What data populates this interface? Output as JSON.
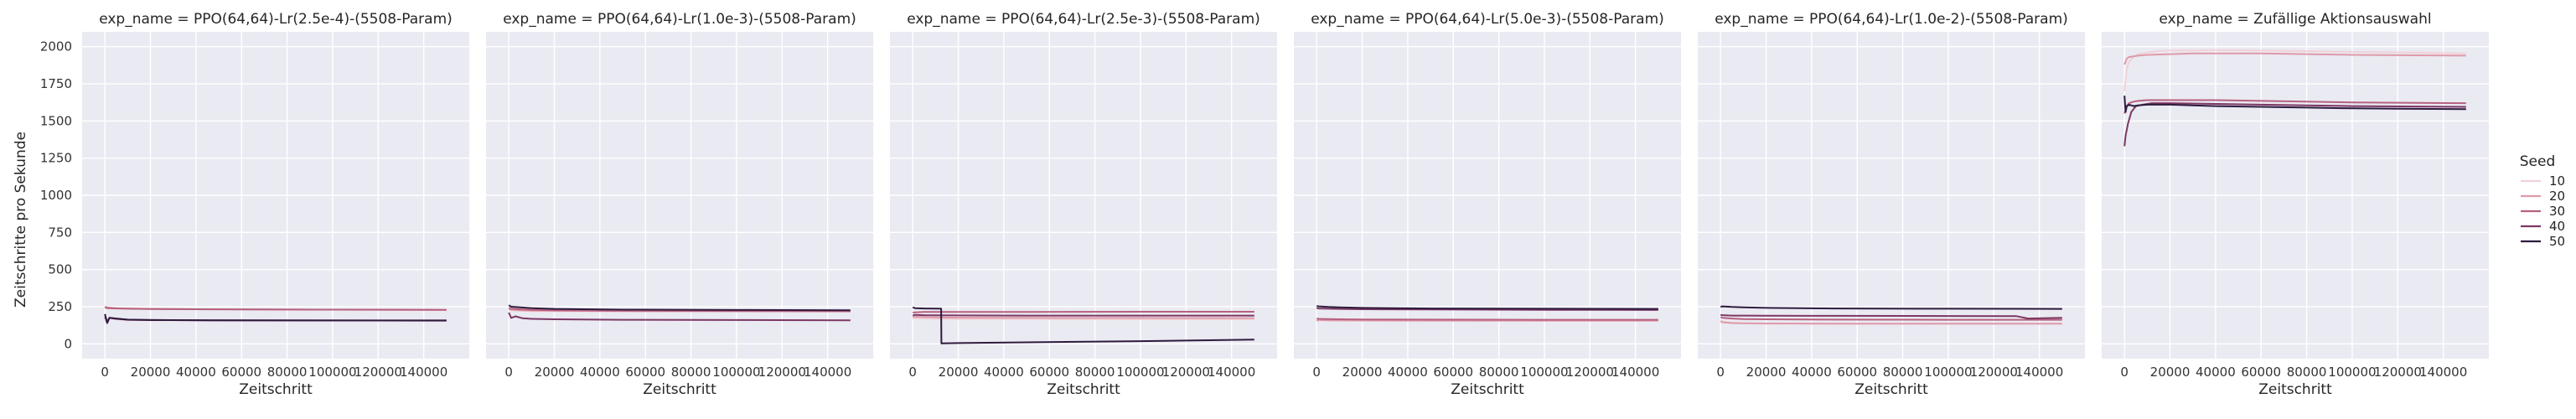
{
  "chart_data": {
    "type": "line",
    "ylabel": "Zeitschritte pro Sekunde",
    "xlabel": "Zeitschritt",
    "xlim": [
      -10000,
      160000
    ],
    "ylim": [
      -100,
      2100
    ],
    "xticks": [
      0,
      20000,
      40000,
      60000,
      80000,
      100000,
      120000,
      140000
    ],
    "xtick_labels": [
      "0",
      "20000",
      "40000",
      "60000",
      "80000",
      "100000",
      "120000",
      "140000"
    ],
    "yticks": [
      0,
      250,
      500,
      750,
      1000,
      1250,
      1500,
      1750,
      2000
    ],
    "ytick_labels": [
      "0",
      "250",
      "500",
      "750",
      "1000",
      "1250",
      "1500",
      "1750",
      "2000"
    ],
    "grid": true,
    "legend": {
      "title": "Seed",
      "placement": "right",
      "entries": [
        {
          "label": "10",
          "color": "#f1d2d8"
        },
        {
          "label": "20",
          "color": "#de9aaa"
        },
        {
          "label": "30",
          "color": "#b7607f"
        },
        {
          "label": "40",
          "color": "#7c3763"
        },
        {
          "label": "50",
          "color": "#2d1b3e"
        }
      ]
    },
    "panels": [
      {
        "title": "exp_name = PPO(64,64)-Lr(2.5e-4)-(5508-Param)",
        "series": [
          {
            "seed": "10",
            "x": [
              0,
              1000,
              2000,
              5000,
              10000,
              20000,
              50000,
              100000,
              150000
            ],
            "y": [
              160,
              140,
              170,
              165,
              160,
              158,
              157,
              157,
              157
            ]
          },
          {
            "seed": "20",
            "x": [
              0,
              1000,
              5000,
              10000,
              20000,
              50000,
              100000,
              150000
            ],
            "y": [
              250,
              245,
              240,
              238,
              235,
              232,
              230,
              228
            ]
          },
          {
            "seed": "30",
            "x": [
              0,
              1000,
              5000,
              10000,
              20000,
              50000,
              100000,
              150000
            ],
            "y": [
              245,
              240,
              238,
              236,
              234,
              232,
              230,
              229
            ]
          },
          {
            "seed": "40",
            "x": [
              0,
              1000,
              2000,
              5000,
              10000,
              20000,
              50000,
              100000,
              150000
            ],
            "y": [
              180,
              150,
              175,
              168,
              162,
              160,
              158,
              157,
              156
            ]
          },
          {
            "seed": "50",
            "x": [
              0,
              1000,
              2000,
              5000,
              10000,
              20000,
              50000,
              100000,
              150000
            ],
            "y": [
              200,
              140,
              175,
              170,
              163,
              160,
              158,
              157,
              157
            ]
          }
        ]
      },
      {
        "title": "exp_name = PPO(64,64)-Lr(1.0e-3)-(5508-Param)",
        "series": [
          {
            "seed": "10",
            "x": [
              0,
              1000,
              5000,
              10000,
              20000,
              50000,
              100000,
              150000
            ],
            "y": [
              230,
              225,
              222,
              220,
              219,
              218,
              218,
              217
            ]
          },
          {
            "seed": "20",
            "x": [
              0,
              1000,
              5000,
              10000,
              20000,
              50000,
              100000,
              150000
            ],
            "y": [
              235,
              230,
              226,
              224,
              222,
              220,
              219,
              218
            ]
          },
          {
            "seed": "30",
            "x": [
              0,
              1000,
              5000,
              10000,
              20000,
              50000,
              100000,
              150000
            ],
            "y": [
              240,
              236,
              232,
              229,
              226,
              223,
              221,
              220
            ]
          },
          {
            "seed": "40",
            "x": [
              0,
              1000,
              3000,
              6000,
              10000,
              20000,
              50000,
              100000,
              150000
            ],
            "y": [
              210,
              175,
              185,
              172,
              168,
              165,
              162,
              160,
              158
            ]
          },
          {
            "seed": "50",
            "x": [
              0,
              1000,
              5000,
              10000,
              20000,
              50000,
              100000,
              150000
            ],
            "y": [
              260,
              250,
              245,
              240,
              235,
              230,
              228,
              226
            ]
          }
        ]
      },
      {
        "title": "exp_name = PPO(64,64)-Lr(2.5e-3)-(5508-Param)",
        "series": [
          {
            "seed": "10",
            "x": [
              0,
              1000,
              5000,
              10000,
              20000,
              50000,
              100000,
              150000
            ],
            "y": [
              170,
              172,
              170,
              168,
              167,
              166,
              165,
              165
            ]
          },
          {
            "seed": "20",
            "x": [
              0,
              1000,
              5000,
              10000,
              20000,
              50000,
              100000,
              150000
            ],
            "y": [
              180,
              182,
              180,
              178,
              176,
              175,
              174,
              173
            ]
          },
          {
            "seed": "30",
            "x": [
              0,
              1000,
              5000,
              10000,
              20000,
              50000,
              100000,
              150000
            ],
            "y": [
              210,
              212,
              214,
              214,
              215,
              215,
              216,
              216
            ]
          },
          {
            "seed": "40",
            "x": [
              0,
              1000,
              5000,
              10000,
              20000,
              50000,
              100000,
              150000
            ],
            "y": [
              190,
              195,
              193,
              192,
              191,
              190,
              190,
              190
            ]
          },
          {
            "seed": "50",
            "x": [
              0,
              1000,
              5000,
              10000,
              12500,
              12600,
              20000,
              50000,
              100000,
              150000
            ],
            "y": [
              245,
              240,
              238,
              237,
              236,
              3,
              5,
              10,
              18,
              28
            ]
          }
        ]
      },
      {
        "title": "exp_name = PPO(64,64)-Lr(5.0e-3)-(5508-Param)",
        "series": [
          {
            "seed": "10",
            "x": [
              0,
              1000,
              5000,
              10000,
              20000,
              50000,
              100000,
              150000
            ],
            "y": [
              160,
              158,
              157,
              156,
              156,
              156,
              156,
              156
            ]
          },
          {
            "seed": "20",
            "x": [
              0,
              1000,
              5000,
              10000,
              20000,
              50000,
              100000,
              150000
            ],
            "y": [
              155,
              160,
              158,
              157,
              157,
              156,
              156,
              156
            ]
          },
          {
            "seed": "30",
            "x": [
              0,
              1000,
              5000,
              10000,
              20000,
              50000,
              100000,
              150000
            ],
            "y": [
              170,
              168,
              166,
              165,
              164,
              163,
              162,
              162
            ]
          },
          {
            "seed": "40",
            "x": [
              0,
              1000,
              5000,
              10000,
              20000,
              50000,
              100000,
              150000
            ],
            "y": [
              240,
              238,
              236,
              235,
              233,
              231,
              229,
              228
            ]
          },
          {
            "seed": "50",
            "x": [
              0,
              1000,
              5000,
              10000,
              20000,
              50000,
              100000,
              150000
            ],
            "y": [
              255,
              252,
              248,
              245,
              242,
              238,
              236,
              235
            ]
          }
        ]
      },
      {
        "title": "exp_name = PPO(64,64)-Lr(1.0e-2)-(5508-Param)",
        "series": [
          {
            "seed": "10",
            "x": [
              0,
              1000,
              5000,
              10000,
              20000,
              50000,
              100000,
              150000
            ],
            "y": [
              160,
              150,
              142,
              138,
              136,
              135,
              134,
              134
            ]
          },
          {
            "seed": "20",
            "x": [
              0,
              1000,
              5000,
              10000,
              20000,
              50000,
              100000,
              150000
            ],
            "y": [
              150,
              145,
              140,
              138,
              137,
              136,
              135,
              135
            ]
          },
          {
            "seed": "30",
            "x": [
              0,
              1000,
              5000,
              10000,
              20000,
              50000,
              100000,
              150000
            ],
            "y": [
              180,
              175,
              170,
              167,
              165,
              163,
              162,
              162
            ]
          },
          {
            "seed": "40",
            "x": [
              0,
              1000,
              5000,
              10000,
              20000,
              50000,
              100000,
              130000,
              135000,
              150000
            ],
            "y": [
              195,
              193,
              190,
              190,
              189,
              188,
              187,
              186,
              170,
              175
            ]
          },
          {
            "seed": "50",
            "x": [
              0,
              1000,
              5000,
              10000,
              20000,
              50000,
              100000,
              150000
            ],
            "y": [
              250,
              252,
              248,
              245,
              242,
              238,
              236,
              235
            ]
          }
        ]
      },
      {
        "title": "exp_name = Zufällige Aktionsauswahl",
        "series": [
          {
            "seed": "10",
            "x": [
              0,
              1000,
              2000,
              4000,
              6000,
              10000,
              15000,
              20000,
              30000,
              40000,
              60000,
              80000,
              100000,
              150000
            ],
            "y": [
              1700,
              1850,
              1900,
              1930,
              1950,
              1960,
              1970,
              1975,
              1975,
              1978,
              1975,
              1970,
              1965,
              1955
            ]
          },
          {
            "seed": "20",
            "x": [
              0,
              1000,
              2000,
              4000,
              6000,
              10000,
              20000,
              30000,
              40000,
              60000,
              80000,
              100000,
              150000
            ],
            "y": [
              1880,
              1920,
              1930,
              1935,
              1940,
              1945,
              1950,
              1955,
              1955,
              1955,
              1950,
              1945,
              1940
            ]
          },
          {
            "seed": "30",
            "x": [
              0,
              1000,
              2000,
              4000,
              6000,
              10000,
              20000,
              40000,
              60000,
              80000,
              100000,
              150000
            ],
            "y": [
              1550,
              1600,
              1620,
              1630,
              1635,
              1640,
              1640,
              1640,
              1635,
              1630,
              1625,
              1620
            ]
          },
          {
            "seed": "40",
            "x": [
              0,
              500,
              1500,
              3000,
              5000,
              8000,
              12000,
              20000,
              40000,
              60000,
              80000,
              100000,
              150000
            ],
            "y": [
              1330,
              1400,
              1480,
              1560,
              1600,
              1610,
              1620,
              1620,
              1615,
              1610,
              1605,
              1600,
              1595
            ]
          },
          {
            "seed": "50",
            "x": [
              0,
              500,
              1000,
              2000,
              4000,
              6000,
              10000,
              20000,
              40000,
              60000,
              80000,
              100000,
              120000,
              150000
            ],
            "y": [
              1670,
              1560,
              1600,
              1610,
              1600,
              1605,
              1610,
              1610,
              1600,
              1595,
              1590,
              1585,
              1582,
              1580
            ]
          }
        ]
      }
    ]
  }
}
